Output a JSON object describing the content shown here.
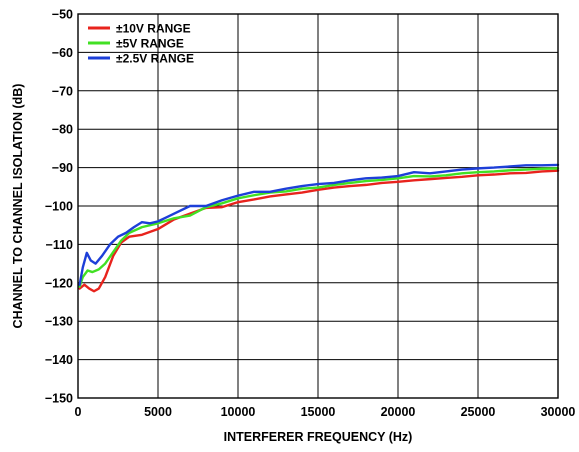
{
  "chart_data": {
    "type": "line",
    "title": "",
    "xlabel": "INTERFERER FREQUENCY (Hz)",
    "ylabel": "CHANNEL TO CHANNEL ISOLATION (dB)",
    "xlim": [
      0,
      30000
    ],
    "ylim": [
      -150,
      -50
    ],
    "xticks": [
      0,
      5000,
      10000,
      15000,
      20000,
      25000,
      30000
    ],
    "yticks": [
      -50,
      -60,
      -70,
      -80,
      -90,
      -100,
      -110,
      -120,
      -130,
      -140,
      -150
    ],
    "grid": true,
    "legend_position": "top-left",
    "series": [
      {
        "name": "±10V RANGE",
        "color": "#e8231d",
        "points": [
          [
            100,
            -121.5
          ],
          [
            400,
            -120.5
          ],
          [
            700,
            -121.5
          ],
          [
            1000,
            -122.2
          ],
          [
            1300,
            -121.5
          ],
          [
            1700,
            -118.5
          ],
          [
            2200,
            -113
          ],
          [
            2700,
            -109.5
          ],
          [
            3200,
            -108
          ],
          [
            4000,
            -107.5
          ],
          [
            5000,
            -106
          ],
          [
            6000,
            -103.5
          ],
          [
            7000,
            -102
          ],
          [
            8000,
            -100.5
          ],
          [
            9000,
            -100.3
          ],
          [
            10000,
            -99
          ],
          [
            11000,
            -98.3
          ],
          [
            12000,
            -97.5
          ],
          [
            13000,
            -97
          ],
          [
            14000,
            -96.5
          ],
          [
            15000,
            -95.8
          ],
          [
            16000,
            -95.2
          ],
          [
            17000,
            -94.8
          ],
          [
            18000,
            -94.5
          ],
          [
            19000,
            -94
          ],
          [
            20000,
            -93.7
          ],
          [
            21000,
            -93.3
          ],
          [
            22000,
            -93
          ],
          [
            23000,
            -92.7
          ],
          [
            24000,
            -92.4
          ],
          [
            25000,
            -92
          ],
          [
            26000,
            -91.8
          ],
          [
            27000,
            -91.5
          ],
          [
            28000,
            -91.4
          ],
          [
            29000,
            -91
          ],
          [
            30000,
            -90.8
          ]
        ]
      },
      {
        "name": "±5V RANGE",
        "color": "#41e023",
        "points": [
          [
            100,
            -121
          ],
          [
            300,
            -118.5
          ],
          [
            600,
            -116.8
          ],
          [
            900,
            -117.2
          ],
          [
            1300,
            -116.5
          ],
          [
            1700,
            -115
          ],
          [
            2200,
            -112
          ],
          [
            2700,
            -109
          ],
          [
            3200,
            -107
          ],
          [
            4000,
            -105.5
          ],
          [
            5000,
            -104.5
          ],
          [
            6000,
            -103.2
          ],
          [
            7000,
            -102.5
          ],
          [
            8000,
            -100.3
          ],
          [
            9000,
            -99.3
          ],
          [
            10000,
            -98
          ],
          [
            11000,
            -97.2
          ],
          [
            12000,
            -96.5
          ],
          [
            13000,
            -96.2
          ],
          [
            14000,
            -95.5
          ],
          [
            15000,
            -95.2
          ],
          [
            16000,
            -94.5
          ],
          [
            17000,
            -94
          ],
          [
            18000,
            -93.5
          ],
          [
            19000,
            -93.2
          ],
          [
            20000,
            -92.8
          ],
          [
            21000,
            -92.2
          ],
          [
            22000,
            -92.3
          ],
          [
            23000,
            -92
          ],
          [
            24000,
            -91.5
          ],
          [
            25000,
            -91.2
          ],
          [
            26000,
            -91
          ],
          [
            27000,
            -90.7
          ],
          [
            28000,
            -90.5
          ],
          [
            29000,
            -90.3
          ],
          [
            30000,
            -90.2
          ]
        ]
      },
      {
        "name": "±2.5V RANGE",
        "color": "#1d3fd8",
        "points": [
          [
            100,
            -120.5
          ],
          [
            300,
            -116
          ],
          [
            550,
            -112.2
          ],
          [
            800,
            -114.2
          ],
          [
            1100,
            -115
          ],
          [
            1500,
            -113
          ],
          [
            2000,
            -110
          ],
          [
            2500,
            -108
          ],
          [
            3000,
            -107
          ],
          [
            3500,
            -105.5
          ],
          [
            4000,
            -104.2
          ],
          [
            4500,
            -104.5
          ],
          [
            5000,
            -104
          ],
          [
            5500,
            -103
          ],
          [
            6000,
            -102
          ],
          [
            7000,
            -100
          ],
          [
            8000,
            -100
          ],
          [
            9000,
            -98.5
          ],
          [
            10000,
            -97.3
          ],
          [
            11000,
            -96.3
          ],
          [
            12000,
            -96.3
          ],
          [
            13000,
            -95.5
          ],
          [
            14000,
            -94.8
          ],
          [
            15000,
            -94.3
          ],
          [
            16000,
            -94
          ],
          [
            17000,
            -93.3
          ],
          [
            18000,
            -92.8
          ],
          [
            19000,
            -92.6
          ],
          [
            20000,
            -92.2
          ],
          [
            21000,
            -91.2
          ],
          [
            22000,
            -91.5
          ],
          [
            23000,
            -91
          ],
          [
            24000,
            -90.5
          ],
          [
            25000,
            -90.2
          ],
          [
            26000,
            -90
          ],
          [
            27000,
            -89.7
          ],
          [
            28000,
            -89.4
          ],
          [
            29000,
            -89.4
          ],
          [
            30000,
            -89.3
          ]
        ]
      }
    ]
  }
}
